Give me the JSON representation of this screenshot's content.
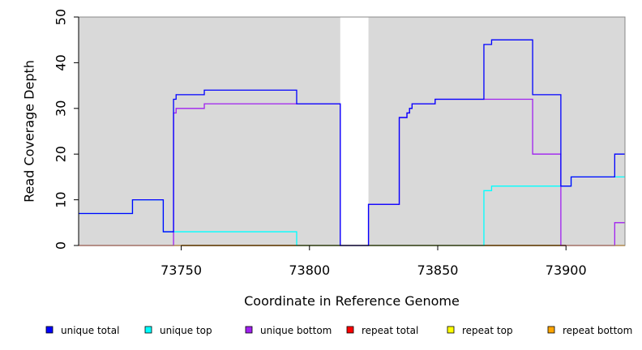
{
  "chart_data": {
    "type": "line",
    "title": "",
    "xlabel": "Coordinate in Reference Genome",
    "ylabel": "Read Coverage Depth",
    "xlim": [
      73710,
      73923
    ],
    "ylim": [
      0,
      50
    ],
    "x_ticks": [
      73750,
      73800,
      73850,
      73900
    ],
    "y_ticks": [
      0,
      10,
      20,
      30,
      40,
      50
    ],
    "background_color": "#d9d9d9",
    "gap_regions": [
      [
        73812,
        73823
      ]
    ],
    "grid": false,
    "legend_position": "bottom",
    "series": [
      {
        "name": "unique total",
        "color": "#0000ff",
        "points": [
          [
            73710,
            7
          ],
          [
            73731,
            7
          ],
          [
            73731,
            10
          ],
          [
            73743,
            10
          ],
          [
            73743,
            3
          ],
          [
            73747,
            3
          ],
          [
            73747,
            32
          ],
          [
            73748,
            32
          ],
          [
            73748,
            33
          ],
          [
            73759,
            33
          ],
          [
            73759,
            34
          ],
          [
            73795,
            34
          ],
          [
            73795,
            31
          ],
          [
            73812,
            31
          ],
          [
            73812,
            0
          ],
          [
            73823,
            0
          ],
          [
            73823,
            9
          ],
          [
            73835,
            9
          ],
          [
            73835,
            28
          ],
          [
            73838,
            28
          ],
          [
            73838,
            29
          ],
          [
            73839,
            29
          ],
          [
            73839,
            30
          ],
          [
            73840,
            30
          ],
          [
            73840,
            31
          ],
          [
            73849,
            31
          ],
          [
            73849,
            32
          ],
          [
            73868,
            32
          ],
          [
            73868,
            44
          ],
          [
            73871,
            44
          ],
          [
            73871,
            45
          ],
          [
            73887,
            45
          ],
          [
            73887,
            33
          ],
          [
            73898,
            33
          ],
          [
            73898,
            13
          ],
          [
            73902,
            13
          ],
          [
            73902,
            15
          ],
          [
            73919,
            15
          ],
          [
            73919,
            20
          ],
          [
            73923,
            20
          ]
        ]
      },
      {
        "name": "unique top",
        "color": "#00ffff",
        "points": [
          [
            73710,
            7
          ],
          [
            73731,
            7
          ],
          [
            73731,
            10
          ],
          [
            73743,
            10
          ],
          [
            73743,
            3
          ],
          [
            73795,
            3
          ],
          [
            73795,
            0
          ],
          [
            73868,
            0
          ],
          [
            73868,
            12
          ],
          [
            73871,
            12
          ],
          [
            73871,
            13
          ],
          [
            73898,
            13
          ],
          [
            73898,
            13
          ],
          [
            73902,
            13
          ],
          [
            73902,
            15
          ],
          [
            73923,
            15
          ]
        ]
      },
      {
        "name": "unique bottom",
        "color": "#a020f0",
        "points": [
          [
            73710,
            0
          ],
          [
            73747,
            0
          ],
          [
            73747,
            29
          ],
          [
            73748,
            29
          ],
          [
            73748,
            30
          ],
          [
            73759,
            30
          ],
          [
            73759,
            31
          ],
          [
            73812,
            31
          ],
          [
            73812,
            0
          ],
          [
            73823,
            0
          ],
          [
            73823,
            9
          ],
          [
            73835,
            9
          ],
          [
            73835,
            28
          ],
          [
            73838,
            28
          ],
          [
            73838,
            29
          ],
          [
            73839,
            29
          ],
          [
            73839,
            30
          ],
          [
            73840,
            30
          ],
          [
            73840,
            31
          ],
          [
            73849,
            31
          ],
          [
            73849,
            32
          ],
          [
            73887,
            32
          ],
          [
            73887,
            20
          ],
          [
            73898,
            20
          ],
          [
            73898,
            0
          ],
          [
            73919,
            0
          ],
          [
            73919,
            5
          ],
          [
            73923,
            5
          ]
        ]
      },
      {
        "name": "repeat total",
        "color": "#ff0000",
        "points": [
          [
            73710,
            0
          ],
          [
            73923,
            0
          ]
        ]
      },
      {
        "name": "repeat top",
        "color": "#ffff00",
        "points": [
          [
            73710,
            0
          ],
          [
            73923,
            0
          ]
        ]
      },
      {
        "name": "repeat bottom",
        "color": "#ffa500",
        "points": [
          [
            73710,
            0
          ],
          [
            73923,
            0
          ]
        ]
      }
    ]
  }
}
